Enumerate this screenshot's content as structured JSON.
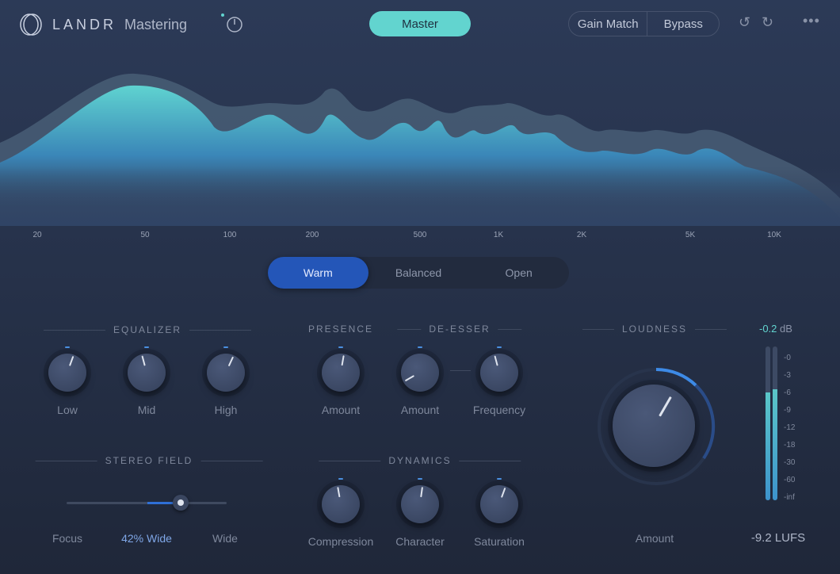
{
  "header": {
    "brand": "LANDR",
    "product": "Mastering",
    "master_label": "Master",
    "gain_match_label": "Gain Match",
    "bypass_label": "Bypass",
    "icons": [
      "logo-rings-icon",
      "reference-knob-icon",
      "undo-icon",
      "redo-icon",
      "more-icon"
    ]
  },
  "spectrum": {
    "freq_labels": [
      "20",
      "50",
      "100",
      "200",
      "500",
      "1K",
      "2K",
      "5K",
      "10K"
    ]
  },
  "style_selector": {
    "options": [
      "Warm",
      "Balanced",
      "Open"
    ],
    "selected": "Warm"
  },
  "equalizer": {
    "title": "EQUALIZER",
    "knobs": [
      {
        "label": "Low",
        "angle": 20
      },
      {
        "label": "Mid",
        "angle": -15
      },
      {
        "label": "High",
        "angle": 25
      }
    ]
  },
  "presence": {
    "title": "PRESENCE",
    "knob": {
      "label": "Amount",
      "angle": 10
    }
  },
  "deesser": {
    "title": "DE-ESSER",
    "knobs": [
      {
        "label": "Amount",
        "angle": -120
      },
      {
        "label": "Frequency",
        "angle": -15
      }
    ]
  },
  "stereo": {
    "title": "STEREO FIELD",
    "left_label": "Focus",
    "value": "42% Wide",
    "right_label": "Wide",
    "percent": 42
  },
  "dynamics": {
    "title": "DYNAMICS",
    "knobs": [
      {
        "label": "Compression",
        "angle": -10
      },
      {
        "label": "Character",
        "angle": 8
      },
      {
        "label": "Saturation",
        "angle": 20
      }
    ]
  },
  "loudness": {
    "title": "LOUDNESS",
    "knob_label": "Amount",
    "angle": 30,
    "peak_value": "-0.2",
    "peak_unit": "dB",
    "lufs": "-9.2 LUFS",
    "meter_scale": [
      "-0",
      "-3",
      "-6",
      "-9",
      "-12",
      "-18",
      "-30",
      "-60",
      "-inf"
    ],
    "meter_levels": [
      0.7,
      0.72
    ]
  },
  "colors": {
    "accent": "#62d4cf",
    "selected": "#2456b8",
    "meter": "#5ac6c8"
  }
}
